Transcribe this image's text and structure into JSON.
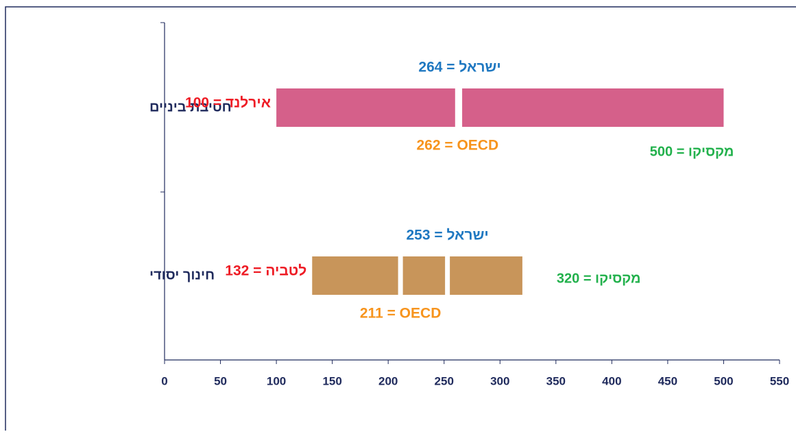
{
  "chart_data": {
    "type": "range",
    "categories": [
      "חטיבת ביניים",
      "חינוך יסודי"
    ],
    "bar_colors": [
      "#d5608a",
      "#c8955a"
    ],
    "min": {
      "values": [
        100,
        132
      ],
      "value_labels": [
        "אירלנד = 100",
        "לטביה = 132"
      ],
      "color": "#ee1c25"
    },
    "oecd": {
      "values": [
        262,
        211
      ],
      "value_labels": [
        "262 = OECD",
        "211 = OECD"
      ],
      "color": "#f7941d"
    },
    "israel": {
      "values": [
        264,
        253
      ],
      "value_labels": [
        "ישראל = 264",
        "ישראל = 253"
      ],
      "color": "#1f78c1"
    },
    "max": {
      "values": [
        500,
        320
      ],
      "value_labels": [
        "מקסיקו = 500",
        "מקסיקו = 320"
      ],
      "color": "#22b14c"
    },
    "xlim": [
      0,
      550
    ],
    "xticks": [
      0,
      50,
      100,
      150,
      200,
      250,
      300,
      350,
      400,
      450,
      500,
      550
    ]
  }
}
